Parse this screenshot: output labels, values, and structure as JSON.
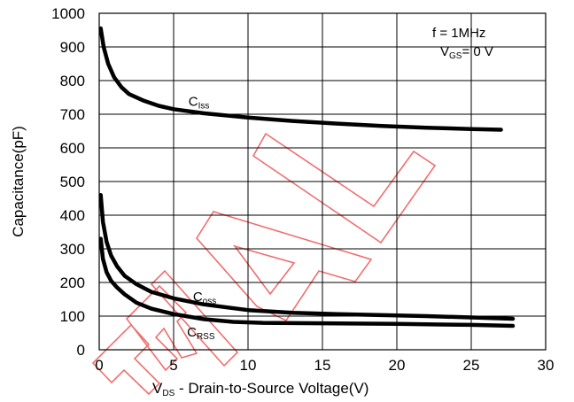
{
  "chart_data": {
    "type": "line",
    "xlabel": {
      "prefix": "V",
      "sub": "DS",
      "rest": " - Drain-to-Source Voltage(V)"
    },
    "ylabel": "Capacitance(pF)",
    "xlim": [
      0,
      30
    ],
    "ylim": [
      0,
      1000
    ],
    "xticks": [
      "0",
      "5",
      "10",
      "15",
      "20",
      "25",
      "30"
    ],
    "yticks": [
      "0",
      "100",
      "200",
      "300",
      "400",
      "500",
      "600",
      "700",
      "800",
      "900",
      "1000"
    ],
    "grid": true,
    "conditions": {
      "freq": "f  =  1MHz",
      "vgs": {
        "prefix": "V",
        "sub": "GS",
        "rest": "= 0 V"
      }
    },
    "series": [
      {
        "name": "Ciss",
        "label_main": "C",
        "label_sub": "Iss",
        "label_at": [
          6,
          725
        ],
        "x": [
          0.1,
          0.3,
          0.6,
          1,
          1.5,
          2,
          3,
          4,
          5,
          7,
          10,
          13,
          16,
          19,
          22,
          25,
          27
        ],
        "y": [
          955,
          900,
          850,
          810,
          780,
          760,
          740,
          725,
          715,
          703,
          690,
          680,
          672,
          665,
          660,
          656,
          654
        ]
      },
      {
        "name": "Coss",
        "label_main": "C",
        "label_sub": "oss",
        "label_at": [
          6.3,
          145
        ],
        "x": [
          0.1,
          0.25,
          0.5,
          0.8,
          1.2,
          1.7,
          2.5,
          3.5,
          5,
          7,
          10,
          13,
          16,
          19,
          22,
          25,
          27.8
        ],
        "y": [
          460,
          380,
          320,
          280,
          248,
          220,
          195,
          172,
          153,
          135,
          118,
          110,
          106,
          103,
          100,
          96,
          92
        ]
      },
      {
        "name": "Crss",
        "label_main": "C",
        "label_sub": "RSS",
        "label_at": [
          5.9,
          40
        ],
        "x": [
          0.1,
          0.25,
          0.5,
          0.8,
          1.2,
          1.7,
          2.5,
          3.5,
          5,
          7,
          9,
          11,
          14,
          17,
          20,
          23,
          25,
          27.8
        ],
        "y": [
          330,
          270,
          230,
          205,
          185,
          165,
          140,
          122,
          106,
          91,
          83,
          80,
          79,
          78,
          77,
          75,
          74,
          71
        ]
      }
    ]
  }
}
